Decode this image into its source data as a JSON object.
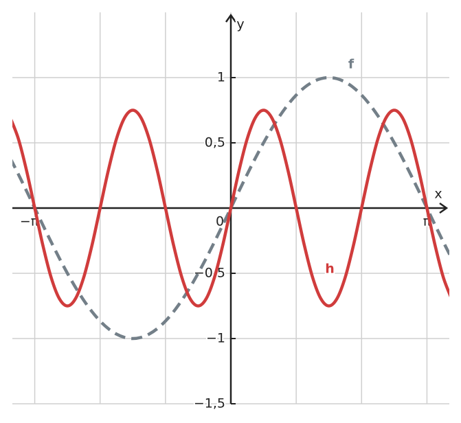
{
  "chart_data": {
    "type": "line",
    "xlabel": "x",
    "ylabel": "y",
    "x": [
      -3.5343,
      -3.4034,
      -3.2725,
      -3.1416,
      -3.0107,
      -2.8798,
      -2.7489,
      -2.618,
      -2.4871,
      -2.3562,
      -2.2253,
      -2.0944,
      -1.9635,
      -1.8326,
      -1.7017,
      -1.5708,
      -1.4399,
      -1.309,
      -1.1781,
      -1.0472,
      -0.9163,
      -0.7854,
      -0.6545,
      -0.5236,
      -0.3927,
      -0.2618,
      -0.1309,
      0,
      0.1309,
      0.2618,
      0.3927,
      0.5236,
      0.6545,
      0.7854,
      0.9163,
      1.0472,
      1.1781,
      1.309,
      1.4399,
      1.5708,
      1.7017,
      1.8326,
      1.9635,
      2.0944,
      2.2253,
      2.3562,
      2.4871,
      2.618,
      2.7489,
      2.8798,
      3.0107,
      3.1416,
      3.2725,
      3.4034,
      3.5343
    ],
    "series": [
      {
        "name": "f",
        "color": "#737f88",
        "dashed": true,
        "values": [
          0.3827,
          0.2588,
          0.1305,
          0,
          -0.1305,
          -0.2588,
          -0.3827,
          -0.5,
          -0.6088,
          -0.7071,
          -0.7934,
          -0.866,
          -0.9239,
          -0.9659,
          -0.9914,
          -1,
          -0.9914,
          -0.9659,
          -0.9239,
          -0.866,
          -0.7934,
          -0.7071,
          -0.6088,
          -0.5,
          -0.3827,
          -0.2588,
          -0.1305,
          0,
          0.1305,
          0.2588,
          0.3827,
          0.5,
          0.6088,
          0.7071,
          0.7934,
          0.866,
          0.9239,
          0.9659,
          0.9914,
          1,
          0.9914,
          0.9659,
          0.9239,
          0.866,
          0.7934,
          0.7071,
          0.6088,
          0.5,
          0.3827,
          0.2588,
          0.1305,
          0,
          -0.1305,
          -0.2588,
          -0.3827
        ]
      },
      {
        "name": "h",
        "color": "#d03c3c",
        "dashed": false,
        "values": [
          0.6929,
          0.5303,
          0.287,
          0,
          -0.287,
          -0.5303,
          -0.6929,
          -0.75,
          -0.6929,
          -0.5303,
          -0.287,
          0,
          0.287,
          0.5303,
          0.6929,
          0.75,
          0.6929,
          0.5303,
          0.287,
          0,
          -0.287,
          -0.5303,
          -0.6929,
          -0.75,
          -0.6929,
          -0.5303,
          -0.287,
          0,
          0.287,
          0.5303,
          0.6929,
          0.75,
          0.6929,
          0.5303,
          0.287,
          0,
          -0.287,
          -0.5303,
          -0.6929,
          -0.75,
          -0.6929,
          -0.5303,
          -0.287,
          0,
          0.287,
          0.5303,
          0.6929,
          0.75,
          0.6929,
          0.5303,
          0.287,
          0,
          -0.287,
          -0.5303,
          -0.6929
        ]
      }
    ],
    "xlim": [
      -3.5,
      3.5
    ],
    "ylim": [
      -1.5,
      1.5
    ],
    "xticks": [
      {
        "value": -3.1416,
        "label": "−π"
      },
      0,
      {
        "value": 3.1416,
        "label": "π"
      }
    ],
    "xgrid": [
      -3.1416,
      -2.0944,
      -1.0472,
      0,
      1.0472,
      2.0944,
      3.1416
    ],
    "yticks": [
      {
        "value": -1.5,
        "label": "−1,5"
      },
      {
        "value": -1,
        "label": "−1"
      },
      {
        "value": -0.5,
        "label": "−0,5"
      },
      {
        "value": 0.5,
        "label": "0,5"
      },
      1
    ],
    "grid": true
  }
}
